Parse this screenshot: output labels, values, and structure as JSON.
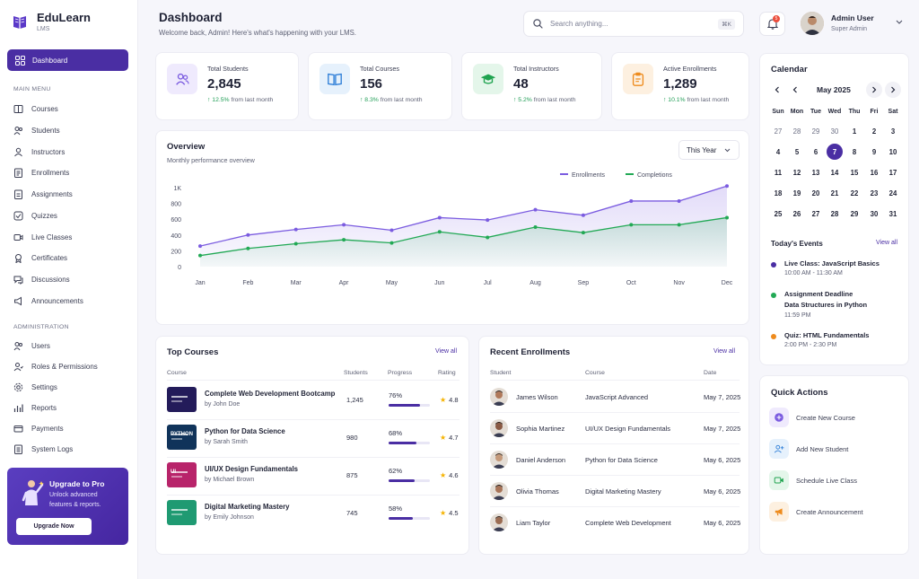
{
  "brand": {
    "name": "EduLearn",
    "sub": "LMS"
  },
  "sidebar": {
    "active": "Dashboard",
    "sections": [
      {
        "title": "MAIN MENU",
        "items": [
          "Courses",
          "Students",
          "Instructors",
          "Enrollments",
          "Assignments",
          "Quizzes",
          "Live Classes",
          "Certificates",
          "Discussions",
          "Announcements"
        ]
      },
      {
        "title": "ADMINISTRATION",
        "items": [
          "Users",
          "Roles & Permissions",
          "Settings",
          "Reports",
          "Payments",
          "System Logs"
        ]
      }
    ],
    "upgrade": {
      "title": "Upgrade to Pro",
      "desc": "Unlock advanced features & reports.",
      "button": "Upgrade Now"
    }
  },
  "header": {
    "title": "Dashboard",
    "subtitle": "Welcome back, Admin! Here's what's happening with your LMS.",
    "search_placeholder": "Search anything...",
    "shortcut": "⌘K",
    "notifications": "5",
    "user_name": "Admin User",
    "user_role": "Super Admin"
  },
  "stats": [
    {
      "label": "Total Students",
      "value": "2,845",
      "pct": "12.5%",
      "trend": "from last month",
      "icon": "users-icon",
      "color": "#7b5ce0",
      "bg": "#efeafd"
    },
    {
      "label": "Total Courses",
      "value": "156",
      "pct": "8.3%",
      "trend": "from last month",
      "icon": "book-icon",
      "color": "#2f7fd8",
      "bg": "#e6f1fc"
    },
    {
      "label": "Total Instructors",
      "value": "48",
      "pct": "5.2%",
      "trend": "from last month",
      "icon": "graduation-cap-icon",
      "color": "#1fa34f",
      "bg": "#e4f6ea"
    },
    {
      "label": "Active Enrollments",
      "value": "1,289",
      "pct": "10.1%",
      "trend": "from last month",
      "icon": "clipboard-icon",
      "color": "#ee8b1d",
      "bg": "#fdf0e0"
    }
  ],
  "overview": {
    "title": "Overview",
    "subtitle": "Monthly performance overview",
    "period": "This Year"
  },
  "chart_data": {
    "type": "area",
    "categories": [
      "Jan",
      "Feb",
      "Mar",
      "Apr",
      "May",
      "Jun",
      "Jul",
      "Aug",
      "Sep",
      "Oct",
      "Nov",
      "Dec"
    ],
    "series": [
      {
        "name": "Enrollments",
        "color": "#7b5ce0",
        "values": [
          260,
          400,
          470,
          530,
          460,
          620,
          590,
          720,
          650,
          830,
          830,
          1020
        ]
      },
      {
        "name": "Completions",
        "color": "#22a955",
        "values": [
          140,
          230,
          290,
          340,
          300,
          440,
          370,
          500,
          430,
          530,
          530,
          620
        ]
      }
    ],
    "yticks": [
      "0",
      "200",
      "400",
      "600",
      "800",
      "1K"
    ],
    "ylim": [
      0,
      1000
    ],
    "legend": "top-right"
  },
  "top_courses": {
    "title": "Top Courses",
    "view_all": "View all",
    "headers": [
      "Course",
      "Students",
      "Progress",
      "Rating"
    ],
    "rows": [
      {
        "title": "Complete Web Development Bootcamp",
        "by": "by John Doe",
        "students": "1,245",
        "progress": "76%",
        "pct": 0.76,
        "rating": "4.8",
        "thumb": "#231b5a"
      },
      {
        "title": "Python for Data Science",
        "by": "by Sarah Smith",
        "students": "980",
        "progress": "68%",
        "pct": 0.68,
        "rating": "4.7",
        "thumb": "#10335a",
        "thumb_text": "PYTHON"
      },
      {
        "title": "UI/UX Design Fundamentals",
        "by": "by Michael Brown",
        "students": "875",
        "progress": "62%",
        "pct": 0.62,
        "rating": "4.6",
        "thumb": "#b8246a",
        "thumb_text": "UI"
      },
      {
        "title": "Digital Marketing Mastery",
        "by": "by Emily Johnson",
        "students": "745",
        "progress": "58%",
        "pct": 0.58,
        "rating": "4.5",
        "thumb": "#1f9a72"
      }
    ]
  },
  "recent_enrollments": {
    "title": "Recent Enrollments",
    "view_all": "View all",
    "headers": [
      "Student",
      "Course",
      "Date"
    ],
    "rows": [
      {
        "name": "James Wilson",
        "course": "JavaScript Advanced",
        "date": "May 7, 2025"
      },
      {
        "name": "Sophia Martinez",
        "course": "UI/UX Design Fundamentals",
        "date": "May 7, 2025"
      },
      {
        "name": "Daniel Anderson",
        "course": "Python for Data Science",
        "date": "May 6, 2025"
      },
      {
        "name": "Olivia Thomas",
        "course": "Digital Marketing Mastery",
        "date": "May 6, 2025"
      },
      {
        "name": "Liam Taylor",
        "course": "Complete Web Development",
        "date": "May 6, 2025"
      }
    ]
  },
  "calendar": {
    "title": "Calendar",
    "month": "May 2025",
    "selected": "7",
    "weekdays": [
      "Sun",
      "Mon",
      "Tue",
      "Wed",
      "Thu",
      "Fri",
      "Sat"
    ],
    "weeks": [
      [
        "27",
        "28",
        "29",
        "30",
        "1",
        "2",
        "3"
      ],
      [
        "4",
        "5",
        "6",
        "7",
        "8",
        "9",
        "10"
      ],
      [
        "11",
        "12",
        "13",
        "14",
        "15",
        "16",
        "17"
      ],
      [
        "18",
        "19",
        "20",
        "21",
        "22",
        "23",
        "24"
      ],
      [
        "25",
        "26",
        "27",
        "28",
        "29",
        "30",
        "31"
      ]
    ]
  },
  "events": {
    "title": "Today's Events",
    "view_all": "View all",
    "items": [
      {
        "title": "Live Class: JavaScript Basics",
        "time": "10:00 AM - 11:30 AM",
        "color": "#4a2ea3"
      },
      {
        "title": "Assignment Deadline",
        "title2": "Data Structures in Python",
        "time": "11:59 PM",
        "color": "#22a955"
      },
      {
        "title": "Quiz: HTML Fundamentals",
        "time": "2:00 PM - 2:30 PM",
        "color": "#ee8b1d"
      }
    ]
  },
  "quick_actions": {
    "title": "Quick Actions",
    "items": [
      {
        "label": "Create New Course",
        "icon": "plus-icon",
        "color": "#7b5ce0",
        "bg": "#efeafd"
      },
      {
        "label": "Add New Student",
        "icon": "add-user-icon",
        "color": "#2f7fd8",
        "bg": "#e6f1fc"
      },
      {
        "label": "Schedule Live Class",
        "icon": "video-icon",
        "color": "#1fa34f",
        "bg": "#e4f6ea"
      },
      {
        "label": "Create Announcement",
        "icon": "megaphone-icon",
        "color": "#ee8b1d",
        "bg": "#fdf0e0"
      }
    ]
  }
}
